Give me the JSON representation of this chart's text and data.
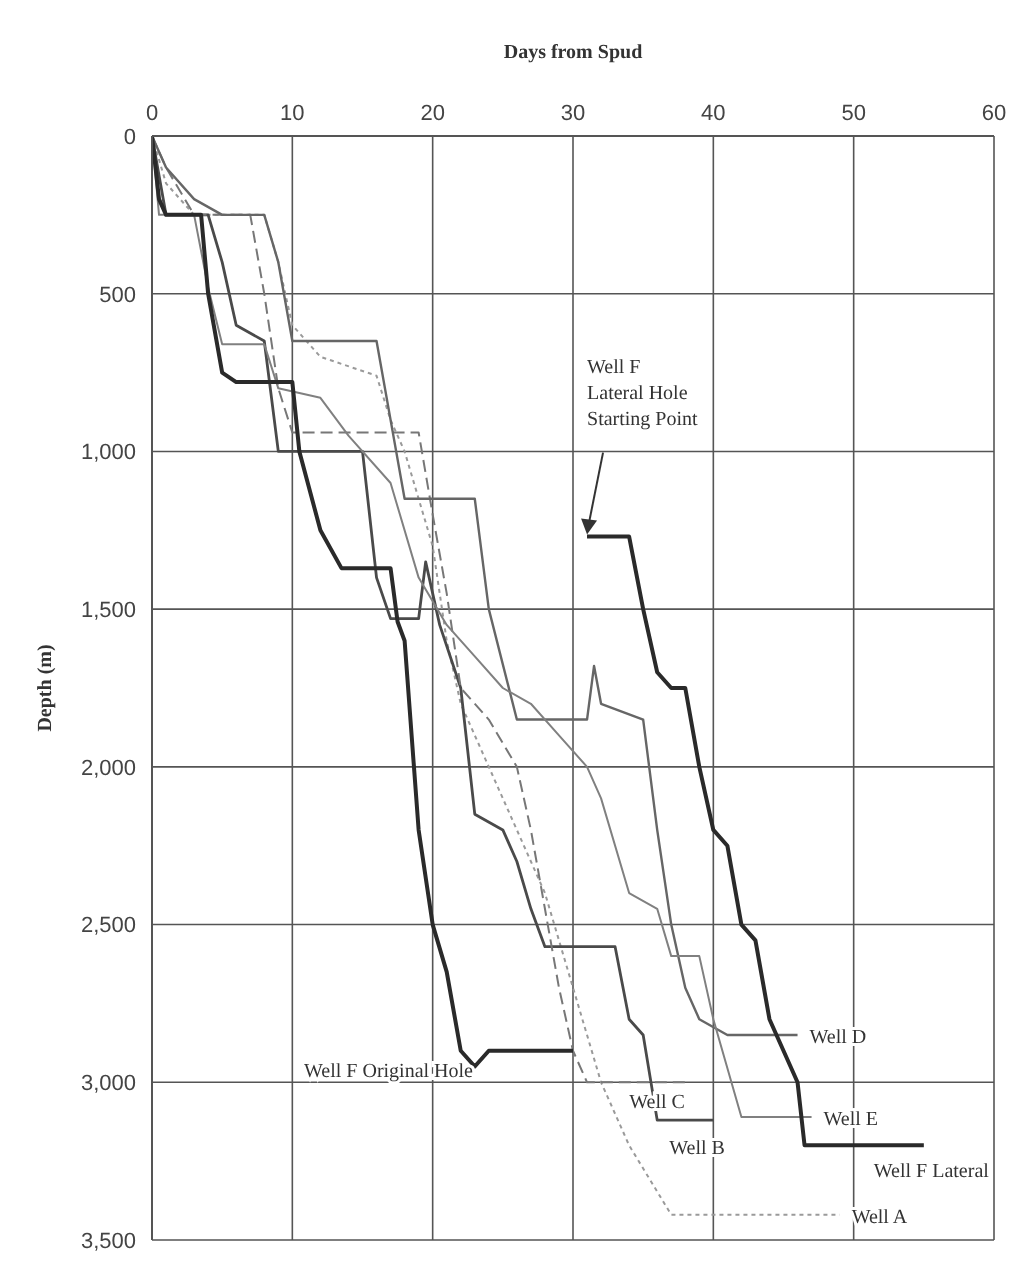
{
  "chart_data": {
    "type": "line",
    "xlabel": "Days from Spud",
    "ylabel": "Depth (m)",
    "xlim": [
      0,
      60
    ],
    "xticks": [
      0,
      10,
      20,
      30,
      40,
      50,
      60
    ],
    "ylim": [
      3500,
      0
    ],
    "yticks": [
      0,
      500,
      {
        "value": 1000,
        "label": "1,000"
      },
      {
        "value": 1500,
        "label": "1,500"
      },
      {
        "value": 2000,
        "label": "2,000"
      },
      {
        "value": 2500,
        "label": "2,500"
      },
      {
        "value": 3000,
        "label": "3,000"
      },
      {
        "value": 3500,
        "label": "3,500"
      }
    ],
    "grid": true,
    "legend": false,
    "marker": "none",
    "annotations": [
      {
        "text": "Well F Lateral Hole Starting Point",
        "x": 31,
        "y": 1270
      }
    ],
    "series": [
      {
        "name": "Well A",
        "color": "#9a9a9a",
        "line_style": "dotted",
        "x": [
          0,
          1,
          3,
          8,
          9,
          10,
          12,
          16,
          17,
          18,
          19,
          20,
          21,
          22,
          24,
          26,
          28,
          30,
          32,
          34,
          37,
          49
        ],
        "values": [
          0,
          150,
          250,
          250,
          400,
          600,
          700,
          760,
          900,
          1000,
          1150,
          1300,
          1600,
          1800,
          2000,
          2200,
          2400,
          2700,
          3000,
          3200,
          3420,
          3420
        ]
      },
      {
        "name": "Well B",
        "color": "#4a4a4a",
        "line_style": "solid",
        "x": [
          0,
          1,
          4,
          5,
          6,
          8,
          9,
          15,
          16,
          17,
          19,
          19.5,
          20.5,
          22,
          23,
          25,
          26,
          27,
          28,
          33,
          34,
          35,
          36,
          40
        ],
        "values": [
          0,
          250,
          250,
          400,
          600,
          650,
          1000,
          1000,
          1400,
          1530,
          1530,
          1350,
          1550,
          1750,
          2150,
          2200,
          2300,
          2450,
          2570,
          2570,
          2800,
          2850,
          3120,
          3120
        ]
      },
      {
        "name": "Well C",
        "color": "#777777",
        "line_style": "dashed",
        "x": [
          0,
          1,
          3,
          7,
          8,
          9,
          10,
          19,
          20,
          21,
          22,
          24,
          26,
          27,
          28,
          29,
          30,
          31,
          38
        ],
        "values": [
          0,
          100,
          250,
          250,
          500,
          800,
          940,
          940,
          1200,
          1450,
          1750,
          1850,
          2000,
          2200,
          2450,
          2700,
          2900,
          3000,
          3000
        ]
      },
      {
        "name": "Well D",
        "color": "#666666",
        "line_style": "solid",
        "x": [
          0,
          1,
          3,
          5,
          8,
          9,
          10,
          16,
          17,
          18,
          23,
          24,
          26,
          31,
          31.5,
          32,
          35,
          36,
          37,
          38,
          39,
          41,
          46
        ],
        "values": [
          0,
          100,
          200,
          250,
          250,
          400,
          650,
          650,
          900,
          1150,
          1150,
          1500,
          1850,
          1850,
          1680,
          1800,
          1850,
          2200,
          2500,
          2700,
          2800,
          2850,
          2850
        ]
      },
      {
        "name": "Well E",
        "color": "#808080",
        "line_style": "solid",
        "x": [
          0,
          0.5,
          3,
          4,
          5,
          8,
          9,
          12,
          14,
          17,
          19,
          21,
          23,
          25,
          27,
          29,
          31,
          32,
          34,
          36,
          37,
          39,
          40,
          42,
          47
        ],
        "values": [
          0,
          250,
          250,
          480,
          660,
          660,
          800,
          830,
          950,
          1100,
          1400,
          1550,
          1650,
          1750,
          1800,
          1900,
          2000,
          2100,
          2400,
          2450,
          2600,
          2600,
          2800,
          3110,
          3110
        ]
      },
      {
        "name": "Well F Original Hole",
        "color": "#2a2a2a",
        "line_style": "solid",
        "x": [
          0,
          0.5,
          1,
          3.5,
          4,
          5,
          6,
          10,
          10.5,
          12,
          13.5,
          17,
          17.5,
          18,
          19,
          20,
          21,
          22,
          23,
          24,
          30
        ],
        "values": [
          0,
          200,
          250,
          250,
          500,
          750,
          780,
          780,
          1000,
          1250,
          1370,
          1370,
          1540,
          1600,
          2200,
          2500,
          2650,
          2900,
          2950,
          2900,
          2900
        ]
      },
      {
        "name": "Well F Lateral",
        "color": "#2a2a2a",
        "line_style": "solid",
        "x": [
          31,
          34,
          35,
          36,
          37,
          38,
          39,
          40,
          41,
          42,
          43,
          44,
          45,
          46,
          46.5,
          55
        ],
        "values": [
          1270,
          1270,
          1500,
          1700,
          1750,
          1750,
          2000,
          2200,
          2250,
          2500,
          2550,
          2800,
          2900,
          3000,
          3200,
          3200
        ]
      }
    ]
  }
}
